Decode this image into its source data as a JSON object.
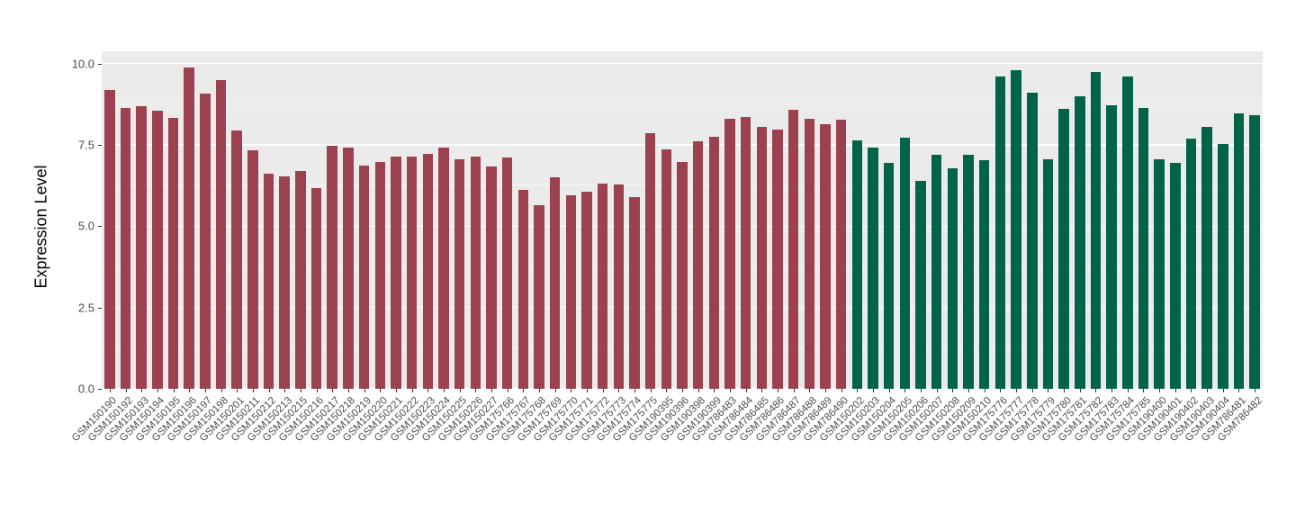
{
  "chart": {
    "ylabel": "Expression Level",
    "panel_bg": "#EBEBEB",
    "grid_color": "#FFFFFF",
    "axis_text_color": "#4D4D4D",
    "tick_mark_color": "#333333",
    "y_ticks": [
      {
        "value": 0.0,
        "label": "0.0"
      },
      {
        "value": 2.5,
        "label": "2.5"
      },
      {
        "value": 5.0,
        "label": "5.0"
      },
      {
        "value": 7.5,
        "label": "7.5"
      },
      {
        "value": 10.0,
        "label": "10.0"
      }
    ]
  },
  "chart_data": {
    "type": "bar",
    "title": "",
    "xlabel": "",
    "ylabel": "Expression Level",
    "ylim": [
      0,
      10.37
    ],
    "grid": true,
    "legend_position": "none",
    "group_colors": {
      "group1": "#9B4150",
      "group2": "#016448"
    },
    "categories": [
      "GSM150190",
      "GSM150192",
      "GSM150193",
      "GSM150194",
      "GSM150195",
      "GSM150196",
      "GSM150197",
      "GSM150198",
      "GSM150201",
      "GSM150211",
      "GSM150212",
      "GSM150213",
      "GSM150215",
      "GSM150216",
      "GSM150217",
      "GSM150218",
      "GSM150219",
      "GSM150220",
      "GSM150221",
      "GSM150222",
      "GSM150223",
      "GSM150224",
      "GSM150225",
      "GSM150226",
      "GSM150227",
      "GSM175766",
      "GSM175767",
      "GSM175768",
      "GSM175769",
      "GSM175770",
      "GSM175771",
      "GSM175772",
      "GSM175773",
      "GSM175774",
      "GSM175775",
      "GSM190395",
      "GSM190396",
      "GSM190398",
      "GSM190399",
      "GSM786483",
      "GSM786484",
      "GSM786485",
      "GSM786486",
      "GSM786487",
      "GSM786488",
      "GSM786489",
      "GSM786490",
      "GSM150202",
      "GSM150203",
      "GSM150204",
      "GSM150205",
      "GSM150206",
      "GSM150207",
      "GSM150208",
      "GSM150209",
      "GSM150210",
      "GSM175776",
      "GSM175777",
      "GSM175778",
      "GSM175779",
      "GSM175780",
      "GSM175781",
      "GSM175782",
      "GSM175783",
      "GSM175784",
      "GSM175785",
      "GSM190400",
      "GSM190401",
      "GSM190402",
      "GSM190403",
      "GSM190404",
      "GSM786481",
      "GSM786482"
    ],
    "values": [
      9.19,
      8.62,
      8.69,
      8.55,
      8.33,
      9.87,
      9.08,
      9.49,
      7.95,
      7.32,
      6.6,
      6.52,
      6.69,
      6.17,
      7.47,
      7.41,
      6.87,
      6.97,
      7.15,
      7.13,
      7.22,
      7.42,
      7.06,
      7.14,
      6.83,
      7.1,
      6.12,
      5.63,
      6.5,
      5.94,
      6.06,
      6.32,
      6.28,
      5.88,
      7.85,
      7.36,
      6.97,
      7.61,
      7.75,
      8.3,
      8.36,
      8.05,
      7.96,
      8.57,
      8.29,
      8.14,
      8.27,
      7.63,
      7.42,
      6.94,
      7.73,
      6.39,
      7.2,
      6.78,
      7.2,
      7.03,
      9.59,
      9.8,
      9.1,
      7.06,
      8.6,
      8.98,
      9.75,
      8.72,
      9.61,
      8.64,
      7.06,
      6.93,
      7.7,
      8.05,
      7.52,
      8.46,
      8.42
    ],
    "groups": [
      "group1",
      "group1",
      "group1",
      "group1",
      "group1",
      "group1",
      "group1",
      "group1",
      "group1",
      "group1",
      "group1",
      "group1",
      "group1",
      "group1",
      "group1",
      "group1",
      "group1",
      "group1",
      "group1",
      "group1",
      "group1",
      "group1",
      "group1",
      "group1",
      "group1",
      "group1",
      "group1",
      "group1",
      "group1",
      "group1",
      "group1",
      "group1",
      "group1",
      "group1",
      "group1",
      "group1",
      "group1",
      "group1",
      "group1",
      "group1",
      "group1",
      "group1",
      "group1",
      "group1",
      "group1",
      "group1",
      "group1",
      "group2",
      "group2",
      "group2",
      "group2",
      "group2",
      "group2",
      "group2",
      "group2",
      "group2",
      "group2",
      "group2",
      "group2",
      "group2",
      "group2",
      "group2",
      "group2",
      "group2",
      "group2",
      "group2",
      "group2",
      "group2",
      "group2",
      "group2",
      "group2",
      "group2",
      "group2"
    ]
  }
}
